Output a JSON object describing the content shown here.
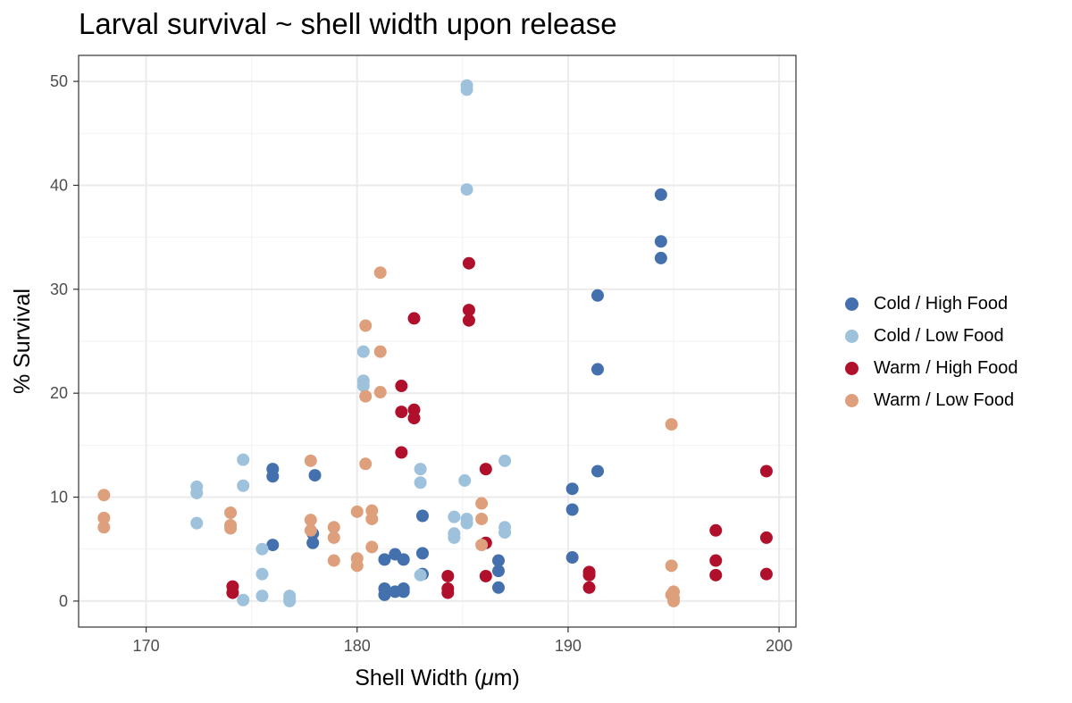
{
  "chart_data": {
    "type": "scatter",
    "title": "Larval survival ~ shell width upon release",
    "xlabel": "Shell Width (μm)",
    "ylabel": "% Survival",
    "xlim": [
      166.8,
      200.8
    ],
    "ylim": [
      -2.5,
      52.5
    ],
    "xticks": [
      170,
      180,
      190,
      200
    ],
    "yticks": [
      0,
      10,
      20,
      30,
      40,
      50
    ],
    "grid": true,
    "legend_position": "right",
    "series": [
      {
        "name": "Cold / High Food",
        "color": "#4470ad",
        "points": [
          [
            176.0,
            12.7
          ],
          [
            176.0,
            12.0
          ],
          [
            176.0,
            5.4
          ],
          [
            178.0,
            12.1
          ],
          [
            177.9,
            6.5
          ],
          [
            177.9,
            5.6
          ],
          [
            181.3,
            4.0
          ],
          [
            181.8,
            4.5
          ],
          [
            182.2,
            4.0
          ],
          [
            181.3,
            1.2
          ],
          [
            181.3,
            0.6
          ],
          [
            181.8,
            0.9
          ],
          [
            182.2,
            1.2
          ],
          [
            182.2,
            0.9
          ],
          [
            183.1,
            8.2
          ],
          [
            183.1,
            4.6
          ],
          [
            183.1,
            2.6
          ],
          [
            186.7,
            3.9
          ],
          [
            186.7,
            2.9
          ],
          [
            186.7,
            1.3
          ],
          [
            190.2,
            10.8
          ],
          [
            190.2,
            8.8
          ],
          [
            190.2,
            4.2
          ],
          [
            191.4,
            29.4
          ],
          [
            191.4,
            22.3
          ],
          [
            191.4,
            12.5
          ],
          [
            194.4,
            39.1
          ],
          [
            194.4,
            34.6
          ],
          [
            194.4,
            33.0
          ]
        ]
      },
      {
        "name": "Cold / Low Food",
        "color": "#9ec1dc",
        "points": [
          [
            172.4,
            11.0
          ],
          [
            172.4,
            10.4
          ],
          [
            172.4,
            7.5
          ],
          [
            174.6,
            13.6
          ],
          [
            174.6,
            11.1
          ],
          [
            174.6,
            0.1
          ],
          [
            175.5,
            5.0
          ],
          [
            175.5,
            2.6
          ],
          [
            175.5,
            0.5
          ],
          [
            176.8,
            0.5
          ],
          [
            176.8,
            0.2
          ],
          [
            176.8,
            0.0
          ],
          [
            180.3,
            24.0
          ],
          [
            180.3,
            21.2
          ],
          [
            180.3,
            20.7
          ],
          [
            183.0,
            12.7
          ],
          [
            183.0,
            11.4
          ],
          [
            183.0,
            2.5
          ],
          [
            184.6,
            8.1
          ],
          [
            184.6,
            6.5
          ],
          [
            184.6,
            6.1
          ],
          [
            185.2,
            49.6
          ],
          [
            185.2,
            49.2
          ],
          [
            185.2,
            39.6
          ],
          [
            185.1,
            11.6
          ],
          [
            185.2,
            7.9
          ],
          [
            185.2,
            7.5
          ],
          [
            187.0,
            13.5
          ],
          [
            187.0,
            7.1
          ],
          [
            187.0,
            6.6
          ]
        ]
      },
      {
        "name": "Warm / High Food",
        "color": "#b0102b",
        "points": [
          [
            174.1,
            1.4
          ],
          [
            174.1,
            0.8
          ],
          [
            182.1,
            20.7
          ],
          [
            182.1,
            18.2
          ],
          [
            182.1,
            14.3
          ],
          [
            182.7,
            27.2
          ],
          [
            182.7,
            18.4
          ],
          [
            182.7,
            17.6
          ],
          [
            185.3,
            32.5
          ],
          [
            185.3,
            28.0
          ],
          [
            185.3,
            27.0
          ],
          [
            184.3,
            2.4
          ],
          [
            184.3,
            1.2
          ],
          [
            184.3,
            0.8
          ],
          [
            186.1,
            12.7
          ],
          [
            186.1,
            5.6
          ],
          [
            186.1,
            2.4
          ],
          [
            191.0,
            2.8
          ],
          [
            191.0,
            2.5
          ],
          [
            191.0,
            1.3
          ],
          [
            197.0,
            6.8
          ],
          [
            197.0,
            3.9
          ],
          [
            197.0,
            2.5
          ],
          [
            199.4,
            12.5
          ],
          [
            199.4,
            6.1
          ],
          [
            199.4,
            2.6
          ]
        ]
      },
      {
        "name": "Warm / Low Food",
        "color": "#dea07c",
        "points": [
          [
            168.0,
            10.2
          ],
          [
            168.0,
            8.0
          ],
          [
            168.0,
            7.1
          ],
          [
            174.0,
            8.5
          ],
          [
            174.0,
            7.3
          ],
          [
            174.0,
            7.0
          ],
          [
            177.8,
            13.5
          ],
          [
            177.8,
            7.8
          ],
          [
            177.8,
            6.8
          ],
          [
            178.9,
            7.1
          ],
          [
            178.9,
            6.1
          ],
          [
            178.9,
            3.9
          ],
          [
            180.0,
            8.6
          ],
          [
            180.0,
            4.1
          ],
          [
            180.0,
            3.4
          ],
          [
            180.4,
            26.5
          ],
          [
            180.4,
            19.7
          ],
          [
            180.4,
            13.2
          ],
          [
            180.7,
            8.7
          ],
          [
            180.7,
            7.9
          ],
          [
            180.7,
            5.2
          ],
          [
            181.1,
            31.6
          ],
          [
            181.1,
            24.0
          ],
          [
            181.1,
            20.1
          ],
          [
            185.9,
            9.4
          ],
          [
            185.9,
            7.9
          ],
          [
            185.9,
            5.4
          ],
          [
            194.9,
            17.0
          ],
          [
            194.9,
            3.4
          ],
          [
            194.9,
            0.6
          ],
          [
            195.0,
            0.9
          ],
          [
            195.0,
            0.3
          ],
          [
            195.0,
            0.0
          ]
        ]
      }
    ]
  }
}
